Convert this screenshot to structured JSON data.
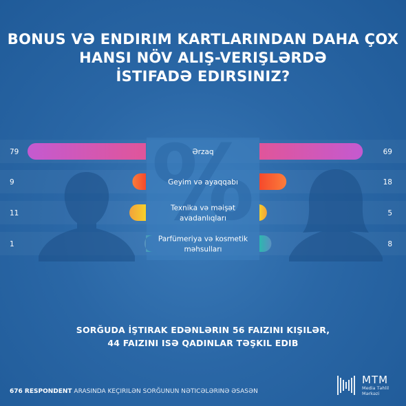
{
  "title": {
    "line1": "BONUS VƏ ENDIRIM KARTLARINDAN DAHA ÇOX",
    "line2": "HANSI NÖV ALIŞ-VERIŞLƏRDƏ",
    "line3": "İSTIFADƏ EDIRSINIZ?"
  },
  "chart_data": {
    "type": "bar",
    "categories": [
      "Ərzaq",
      "Geyim və ayaqqabı",
      "Texnika və məişət avadanlıqları",
      "Parfümeriya və kosmetik məhsulları"
    ],
    "category_lines": [
      [
        "Ərzaq"
      ],
      [
        "Geyim və ayaqqabı"
      ],
      [
        "Texnika və məişət",
        "avadanlıqları"
      ],
      [
        "Parfümeriya və kosmetik",
        "məhsulları"
      ]
    ],
    "series": [
      {
        "values": [
          79,
          9,
          11,
          1
        ]
      },
      {
        "values": [
          69,
          18,
          5,
          8
        ]
      }
    ],
    "background_symbol": "%",
    "colors": [
      "#e0559a",
      "#f26a2e",
      "#f5c52a",
      "#35b5ad"
    ],
    "gradient_start": [
      "#e0559a",
      "#f5492c",
      "#f7d12a",
      "#2db7b0"
    ],
    "gradient_end": [
      "#c45ad0",
      "#fb7d3b",
      "#f2a23b",
      "#5a8fc0"
    ]
  },
  "summary": {
    "line1": "SORĞUDA İŞTIRAK EDƏNLƏRIN 56 FAIZINI KIŞILƏR,",
    "line2": "44 FAIZINI ISƏ QADINLAR TƏŞKIL EDIB"
  },
  "footer": {
    "bold": "676 RESPONDENT",
    "rest": " ARASINDA KEÇIRILƏN SORĞUNUN NƏTICƏLƏRINƏ ƏSASƏN"
  },
  "logo": {
    "main": "MTM",
    "line1": "Media Təhlil",
    "line2": "Mərkəzi"
  }
}
